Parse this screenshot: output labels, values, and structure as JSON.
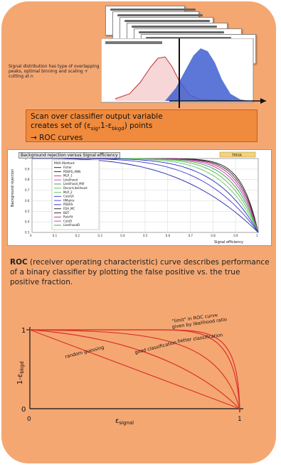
{
  "note_left": "Signal distribution has type of overlapping peaks, optimal binning and scaling + cutting at n",
  "callout": {
    "line1": "Scan over classifier output variable",
    "line2": "creates set of (ε",
    "sub1": "sig",
    "mid": ",1-ε",
    "sub2": "bkgd",
    "line2_end": ") points",
    "line3": "→ ROC curves"
  },
  "rejplot": {
    "title": "Background rejection versus Signal efficiency",
    "ylabel": "Background rejection",
    "xlabel": "Signal efficiency",
    "legend_header": "MVA Method:",
    "badge": "TMVA",
    "methods": [
      "Fisher",
      "PDERS_ANN",
      "MLP_1",
      "Likelihood",
      "Likelihood_MIX",
      "DecorrLikelihood",
      "MLP_2",
      "CutsGA",
      "HMatrix",
      "PDERS",
      "FDA_MC",
      "BDT",
      "RuleFit",
      "CutsD",
      "LikelihoodD"
    ],
    "line_colors": [
      "#1a1a1a",
      "#222222",
      "#c0227f",
      "#b03fb0",
      "#3a9a3a",
      "#4ab84a",
      "#5ec85e",
      "#2c2cc0",
      "#3a3ad0",
      "#2222aa"
    ],
    "x_ticks": [
      "0",
      "0.1",
      "0.2",
      "0.3",
      "0.4",
      "0.5",
      "0.6",
      "0.7",
      "0.8",
      "0.9",
      "1"
    ],
    "y_ticks": [
      "0.3",
      "0.4",
      "0.5",
      "0.6",
      "0.7",
      "0.8",
      "0.9",
      "1"
    ]
  },
  "description": {
    "term": "ROC",
    "text": " (receiver operating characteristic) curve describes performance of a binary classifier by plotting the false positive vs. the true positive fraction."
  },
  "schematic": {
    "y_label_one": "1",
    "y_label_zero": "0",
    "y_axis": "1-ε",
    "y_axis_sub": "bkgd",
    "x_axis": "ε",
    "x_axis_sub": "signal",
    "x_tick_zero": "0",
    "x_tick_one": "1",
    "best_label_1": "\"limit\" in ROC curve",
    "best_label_2": "given by likelihood ratio",
    "better": "better classification",
    "good": "good classification",
    "random": "random guessing",
    "line_color": "#d9342b"
  }
}
